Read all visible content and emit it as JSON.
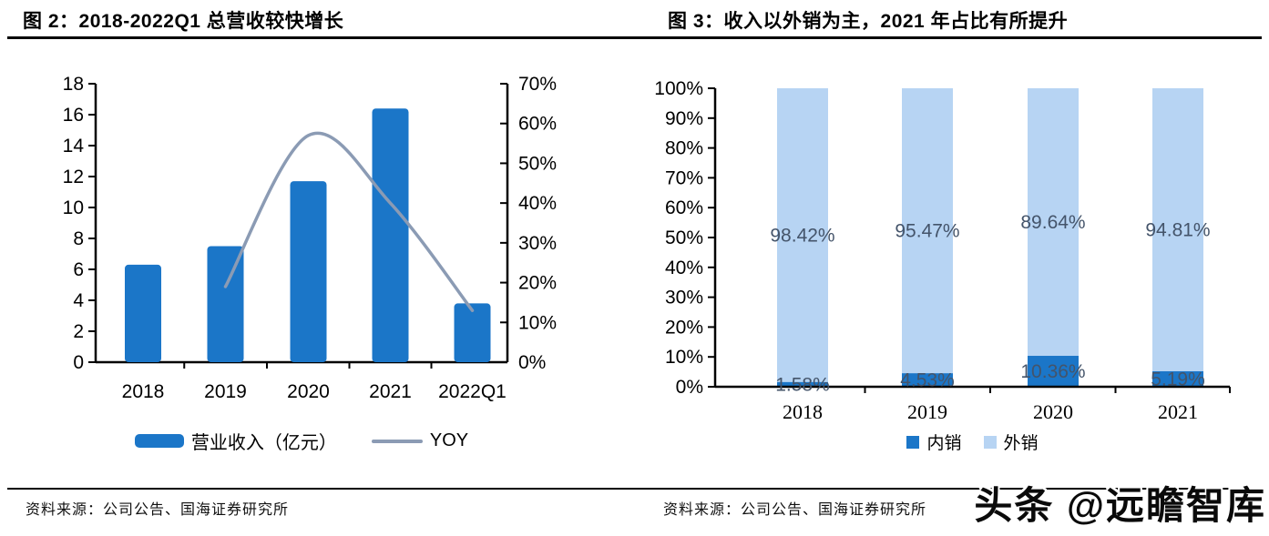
{
  "watermark": "头条 @远瞻智库",
  "figure2": {
    "title": "图 2：2018-2022Q1 总营收较快增长",
    "source": "资料来源：公司公告、国海证券研究所",
    "chart_data": {
      "type": "combo-bar-line",
      "categories": [
        "2018",
        "2019",
        "2020",
        "2021",
        "2022Q1"
      ],
      "series": [
        {
          "name": "营业收入（亿元）",
          "type": "bar",
          "axis": "left",
          "values": [
            6.3,
            7.5,
            11.7,
            16.4,
            3.8
          ],
          "color": "#1b76c8"
        },
        {
          "name": "YOY",
          "type": "line",
          "axis": "right",
          "values": [
            null,
            19,
            57,
            40,
            13
          ],
          "unit": "%",
          "color": "#8b9bb4"
        }
      ],
      "left_axis": {
        "min": 0,
        "max": 18,
        "step": 2,
        "suffix": ""
      },
      "right_axis": {
        "min": 0,
        "max": 70,
        "step": 10,
        "suffix": "%"
      },
      "grid": false,
      "legend_position": "bottom"
    }
  },
  "figure3": {
    "title": "图 3：收入以外销为主，2021 年占比有所提升",
    "source": "资料来源：公司公告、国海证券研究所",
    "chart_data": {
      "type": "stacked-bar-100pct",
      "categories": [
        "2018",
        "2019",
        "2020",
        "2021"
      ],
      "series": [
        {
          "name": "内销",
          "values": [
            1.58,
            4.53,
            10.36,
            5.19
          ],
          "labels": [
            "1.58%",
            "4.53%",
            "10.36%",
            "5.19%"
          ],
          "color": "#1b76c8"
        },
        {
          "name": "外销",
          "values": [
            98.42,
            95.47,
            89.64,
            94.81
          ],
          "labels": [
            "98.42%",
            "95.47%",
            "89.64%",
            "94.81%"
          ],
          "color": "#b7d4f3"
        }
      ],
      "y_axis": {
        "min": 0,
        "max": 100,
        "step": 10,
        "suffix": "%"
      },
      "label_color": "#44546a",
      "grid": false,
      "legend_position": "bottom"
    }
  }
}
